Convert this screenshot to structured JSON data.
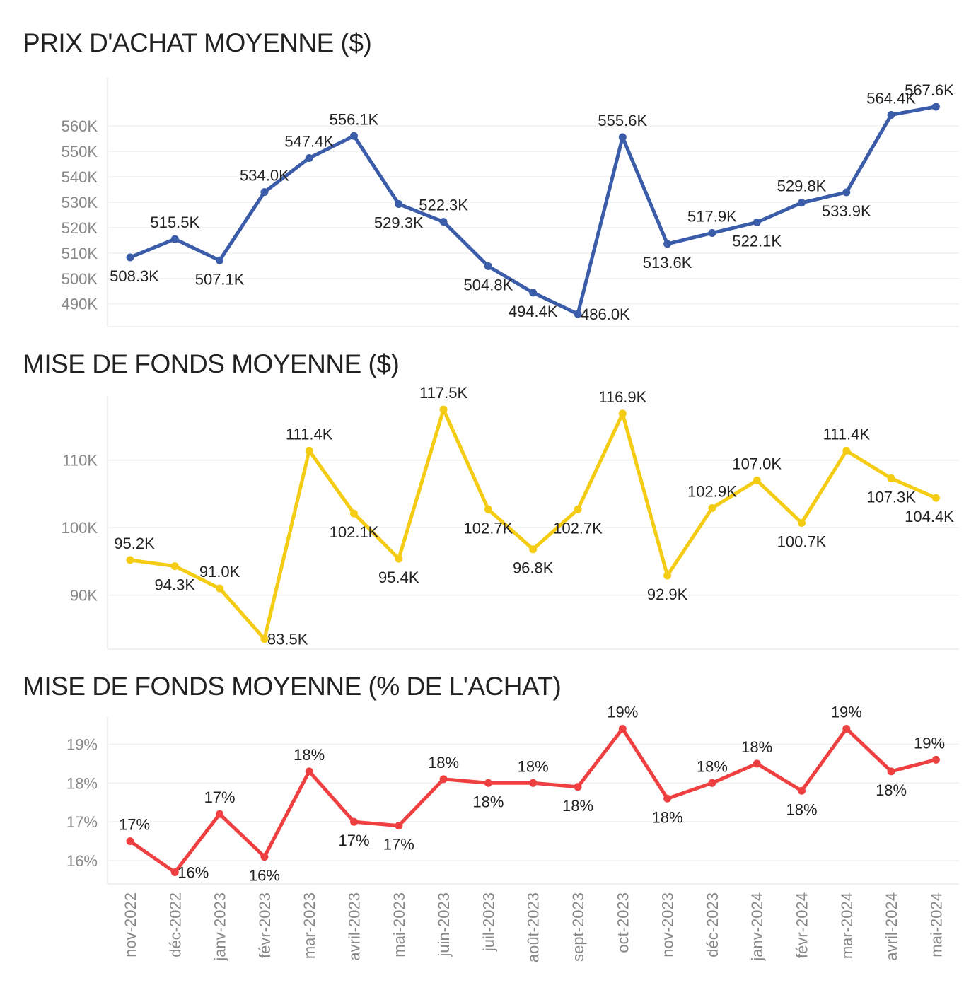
{
  "chart_data": [
    {
      "type": "line",
      "title": "PRIX D'ACHAT MOYENNE ($)",
      "color": "#3b5ca8",
      "x": [
        "nov-2022",
        "déc-2022",
        "janv-2023",
        "févr-2023",
        "mar-2023",
        "avril-2023",
        "mai-2023",
        "juin-2023",
        "juil-2023",
        "août-2023",
        "sept-2023",
        "oct-2023",
        "nov-2023",
        "déc-2023",
        "janv-2024",
        "févr-2024",
        "mar-2024",
        "avril-2024",
        "mai-2024"
      ],
      "values": [
        508.3,
        515.5,
        507.1,
        534.0,
        547.4,
        556.1,
        529.3,
        522.3,
        504.8,
        494.4,
        486.0,
        555.6,
        513.6,
        517.9,
        522.1,
        529.8,
        533.9,
        564.4,
        567.6
      ],
      "data_labels": [
        "508.3K",
        "515.5K",
        "507.1K",
        "534.0K",
        "547.4K",
        "556.1K",
        "529.3K",
        "522.3K",
        "504.8K",
        "494.4K",
        "486.0K",
        "555.6K",
        "513.6K",
        "517.9K",
        "522.1K",
        "529.8K",
        "533.9K",
        "564.4K",
        "567.6K"
      ],
      "label_position": [
        "below",
        "above",
        "below",
        "above",
        "above",
        "above",
        "below",
        "above",
        "below",
        "below",
        "right",
        "above",
        "below",
        "above",
        "below",
        "above",
        "below",
        "above",
        "above"
      ],
      "yticks": [
        490,
        500,
        510,
        520,
        530,
        540,
        550,
        560
      ],
      "ytick_labels": [
        "490K",
        "500K",
        "510K",
        "520K",
        "530K",
        "540K",
        "550K",
        "560K"
      ],
      "ylim": [
        481,
        579
      ],
      "grid": true
    },
    {
      "type": "line",
      "title": "MISE DE FONDS MOYENNE ($)",
      "color": "#f5cc14",
      "x": [
        "nov-2022",
        "déc-2022",
        "janv-2023",
        "févr-2023",
        "mar-2023",
        "avril-2023",
        "mai-2023",
        "juin-2023",
        "juil-2023",
        "août-2023",
        "sept-2023",
        "oct-2023",
        "nov-2023",
        "déc-2023",
        "janv-2024",
        "févr-2024",
        "mar-2024",
        "avril-2024",
        "mai-2024"
      ],
      "values": [
        95.2,
        94.3,
        91.0,
        83.5,
        111.4,
        102.1,
        95.4,
        117.5,
        102.7,
        96.8,
        102.7,
        116.9,
        92.9,
        102.9,
        107.0,
        100.7,
        111.4,
        107.3,
        104.4
      ],
      "data_labels": [
        "95.2K",
        "94.3K",
        "91.0K",
        "83.5K",
        "111.4K",
        "102.1K",
        "95.4K",
        "117.5K",
        "102.7K",
        "96.8K",
        "102.7K",
        "116.9K",
        "92.9K",
        "102.9K",
        "107.0K",
        "100.7K",
        "111.4K",
        "107.3K",
        "104.4K"
      ],
      "label_position": [
        "above",
        "below",
        "above",
        "right",
        "above",
        "below",
        "below",
        "above",
        "below",
        "below",
        "below",
        "above",
        "below",
        "above",
        "above",
        "below",
        "above",
        "below",
        "below"
      ],
      "yticks": [
        90,
        100,
        110
      ],
      "ytick_labels": [
        "90K",
        "100K",
        "110K"
      ],
      "ylim": [
        82,
        119.5
      ],
      "grid": true
    },
    {
      "type": "line",
      "title": "MISE DE FONDS MOYENNE (% DE L'ACHAT)",
      "color": "#ee4040",
      "x": [
        "nov-2022",
        "déc-2022",
        "janv-2023",
        "févr-2023",
        "mar-2023",
        "avril-2023",
        "mai-2023",
        "juin-2023",
        "juil-2023",
        "août-2023",
        "sept-2023",
        "oct-2023",
        "nov-2023",
        "déc-2023",
        "janv-2024",
        "févr-2024",
        "mar-2024",
        "avril-2024",
        "mai-2024"
      ],
      "values": [
        16.5,
        15.7,
        17.2,
        16.1,
        18.3,
        17.0,
        16.9,
        18.1,
        18.0,
        18.0,
        17.9,
        19.4,
        17.6,
        18.0,
        18.5,
        17.8,
        19.4,
        18.3,
        18.6
      ],
      "data_labels": [
        "17%",
        "16%",
        "17%",
        "16%",
        "18%",
        "17%",
        "17%",
        "18%",
        "18%",
        "18%",
        "18%",
        "19%",
        "18%",
        "18%",
        "18%",
        "18%",
        "19%",
        "18%",
        "19%"
      ],
      "label_position": [
        "above",
        "right",
        "above",
        "below",
        "above",
        "below",
        "below",
        "above",
        "below",
        "above",
        "below",
        "above",
        "below",
        "above",
        "above",
        "below",
        "above",
        "below",
        "above"
      ],
      "yticks": [
        16,
        17,
        18,
        19
      ],
      "ytick_labels": [
        "16%",
        "17%",
        "18%",
        "19%"
      ],
      "ylim": [
        15.4,
        19.7
      ],
      "grid": true
    }
  ]
}
